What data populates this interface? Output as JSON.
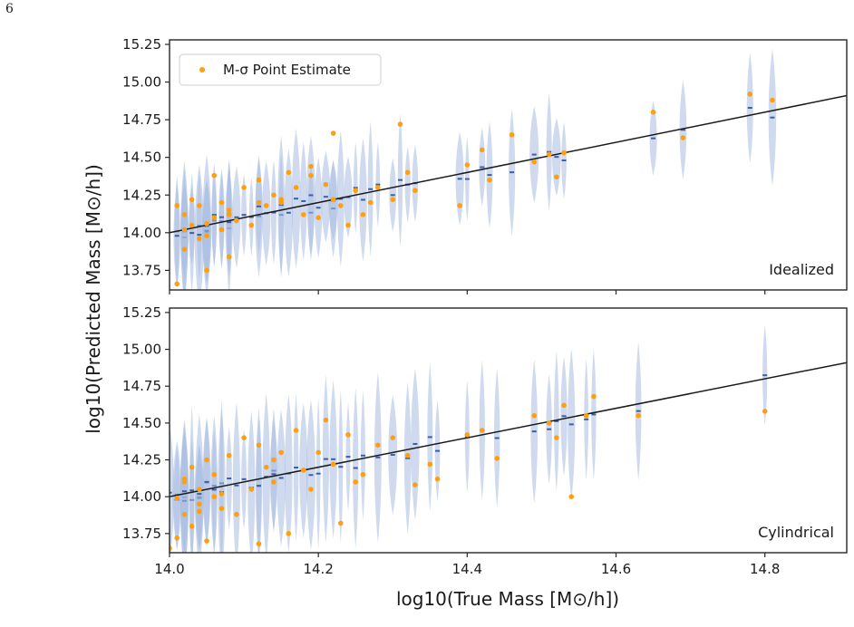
{
  "page_number": "6",
  "colors": {
    "points": "#ff9f0e",
    "violins": "#a8bce0",
    "median_ticks": "#3a5fa8",
    "fit_line": "#1a1a1a",
    "frame": "#262626"
  },
  "legend": {
    "marker_label_prefix": "M-σ",
    "label": "M-σ Point Estimate"
  },
  "chart_data": [
    {
      "type": "scatter",
      "panel": "top",
      "tag": "Idealized",
      "xlabel": "log10(True Mass [M⊙/h])",
      "ylabel": "log10(Predicted Mass [M⊙/h])",
      "xlim": [
        14.0,
        14.91
      ],
      "ylim": [
        13.62,
        15.28
      ],
      "yticks": [
        "13.75",
        "14.00",
        "14.25",
        "14.50",
        "14.75",
        "15.00",
        "15.25"
      ],
      "xticks": [
        "14.0",
        "14.2",
        "14.4",
        "14.6",
        "14.8"
      ],
      "fit_line": [
        [
          14.0,
          14.0
        ],
        [
          14.91,
          14.91
        ]
      ],
      "legend_position": "top-left",
      "series": [
        {
          "name": "M-σ Point Estimate",
          "x": [
            14.01,
            14.01,
            14.02,
            14.02,
            14.03,
            14.03,
            14.04,
            14.04,
            14.05,
            14.05,
            14.06,
            14.06,
            14.07,
            14.07,
            14.08,
            14.08,
            14.09,
            14.1,
            14.11,
            14.12,
            14.12,
            14.13,
            14.14,
            14.15,
            14.16,
            14.17,
            14.18,
            14.19,
            14.2,
            14.21,
            14.22,
            14.22,
            14.23,
            14.24,
            14.25,
            14.26,
            14.27,
            14.28,
            14.3,
            14.31,
            14.32,
            14.33,
            14.39,
            14.4,
            14.42,
            14.43,
            14.46,
            14.49,
            14.51,
            14.52,
            14.53,
            14.65,
            14.69,
            14.78,
            14.81,
            14.02,
            14.05,
            14.08,
            14.15,
            14.19
          ],
          "y": [
            13.66,
            14.18,
            13.89,
            14.12,
            14.05,
            14.22,
            14.18,
            13.96,
            13.75,
            14.06,
            14.1,
            14.38,
            14.02,
            14.2,
            14.15,
            13.84,
            14.08,
            14.3,
            14.05,
            14.2,
            14.35,
            14.18,
            14.25,
            14.22,
            14.4,
            14.3,
            14.12,
            14.44,
            14.1,
            14.32,
            14.66,
            14.22,
            14.18,
            14.05,
            14.28,
            14.12,
            14.2,
            14.3,
            14.22,
            14.72,
            14.4,
            14.28,
            14.18,
            14.45,
            14.55,
            14.35,
            14.65,
            14.47,
            14.52,
            14.37,
            14.53,
            14.8,
            14.63,
            14.92,
            14.88,
            14.02,
            13.98,
            14.12,
            14.2,
            14.38
          ]
        }
      ]
    },
    {
      "type": "scatter",
      "panel": "bottom",
      "tag": "Cylindrical",
      "xlim": [
        14.0,
        14.91
      ],
      "ylim": [
        13.62,
        15.28
      ],
      "yticks": [
        "13.75",
        "14.00",
        "14.25",
        "14.50",
        "14.75",
        "15.00",
        "15.25"
      ],
      "xticks": [
        "14.0",
        "14.2",
        "14.4",
        "14.6",
        "14.8"
      ],
      "fit_line": [
        [
          14.0,
          14.0
        ],
        [
          14.91,
          14.91
        ]
      ],
      "series": [
        {
          "name": "M-σ Point Estimate",
          "x": [
            14.0,
            14.01,
            14.01,
            14.02,
            14.02,
            14.03,
            14.03,
            14.04,
            14.04,
            14.05,
            14.05,
            14.06,
            14.06,
            14.07,
            14.08,
            14.09,
            14.1,
            14.11,
            14.12,
            14.12,
            14.13,
            14.14,
            14.15,
            14.16,
            14.17,
            14.18,
            14.19,
            14.2,
            14.21,
            14.22,
            14.23,
            14.24,
            14.26,
            14.28,
            14.3,
            14.32,
            14.33,
            14.35,
            14.36,
            14.4,
            14.42,
            14.44,
            14.49,
            14.51,
            14.52,
            14.53,
            14.54,
            14.56,
            14.57,
            14.63,
            14.8,
            14.02,
            14.04,
            14.07,
            14.14,
            14.25
          ],
          "y": [
            13.65,
            13.99,
            13.72,
            14.1,
            13.88,
            14.2,
            13.8,
            13.9,
            14.05,
            13.7,
            14.25,
            14.0,
            14.15,
            13.92,
            14.28,
            13.88,
            14.4,
            14.05,
            13.68,
            14.35,
            14.2,
            14.1,
            14.3,
            13.75,
            14.45,
            14.18,
            14.05,
            14.3,
            14.52,
            14.22,
            13.82,
            14.42,
            14.15,
            14.35,
            14.4,
            14.28,
            14.08,
            14.22,
            14.12,
            14.42,
            14.45,
            14.26,
            14.55,
            14.5,
            14.4,
            14.62,
            14.0,
            14.55,
            14.68,
            14.55,
            14.58,
            14.12,
            13.95,
            14.02,
            14.25,
            14.1
          ]
        }
      ]
    }
  ]
}
